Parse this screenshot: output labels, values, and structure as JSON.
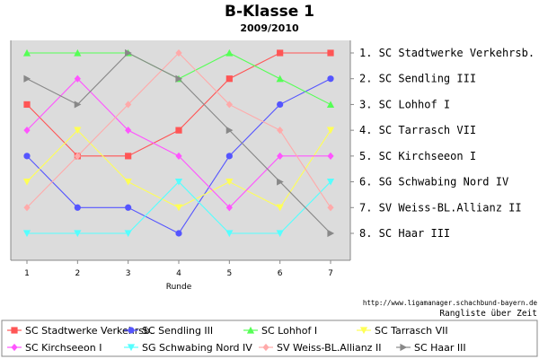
{
  "title": "B-Klasse 1",
  "subtitle": "2009/2010",
  "source": "http://www.ligamanager.schachbund-bayern.de",
  "footnote": "Rangliste über Zeit",
  "chart_data": {
    "type": "line",
    "xlabel": "Runde",
    "ylabel": "",
    "x": [
      1,
      2,
      3,
      4,
      5,
      6,
      7
    ],
    "ylim": [
      8.5,
      0.5
    ],
    "y_reversed": true,
    "grid": false,
    "plot_background": "#dcdcdc",
    "rank_labels": [
      "1. SC Stadtwerke Verkehrsb.",
      "2. SC Sendling III",
      "3. SC Lohhof I",
      "4. SC Tarrasch VII",
      "5. SC Kirchseeon I",
      "6. SG Schwabing Nord IV",
      "7. SV Weiss-BL.Allianz II",
      "8. SC Haar III"
    ],
    "legend_position": "bottom",
    "series": [
      {
        "name": "SC Stadtwerke Verkehrsb.",
        "color": "#ff5555",
        "marker": "square",
        "values": [
          3,
          5,
          5,
          4,
          2,
          1,
          1
        ]
      },
      {
        "name": "SC Sendling III",
        "color": "#5555ff",
        "marker": "circle",
        "values": [
          5,
          7,
          7,
          8,
          5,
          3,
          2
        ]
      },
      {
        "name": "SC Lohhof I",
        "color": "#55ff55",
        "marker": "triangle-up",
        "values": [
          1,
          1,
          1,
          2,
          1,
          2,
          3
        ]
      },
      {
        "name": "SC Tarrasch VII",
        "color": "#ffff55",
        "marker": "triangle-down",
        "values": [
          6,
          4,
          6,
          7,
          6,
          7,
          4
        ]
      },
      {
        "name": "SC Kirchseeon I",
        "color": "#ff55ff",
        "marker": "diamond",
        "values": [
          4,
          2,
          4,
          5,
          7,
          5,
          5
        ]
      },
      {
        "name": "SG Schwabing Nord IV",
        "color": "#55ffff",
        "marker": "triangle-down",
        "values": [
          8,
          8,
          8,
          6,
          8,
          8,
          6
        ]
      },
      {
        "name": "SV Weiss-BL.Allianz II",
        "color": "#ffaaaa",
        "marker": "diamond",
        "values": [
          7,
          5,
          3,
          1,
          3,
          4,
          7
        ]
      },
      {
        "name": "SC Haar III",
        "color": "#888888",
        "marker": "triangle-right",
        "values": [
          2,
          3,
          1,
          2,
          4,
          6,
          8
        ]
      }
    ]
  }
}
